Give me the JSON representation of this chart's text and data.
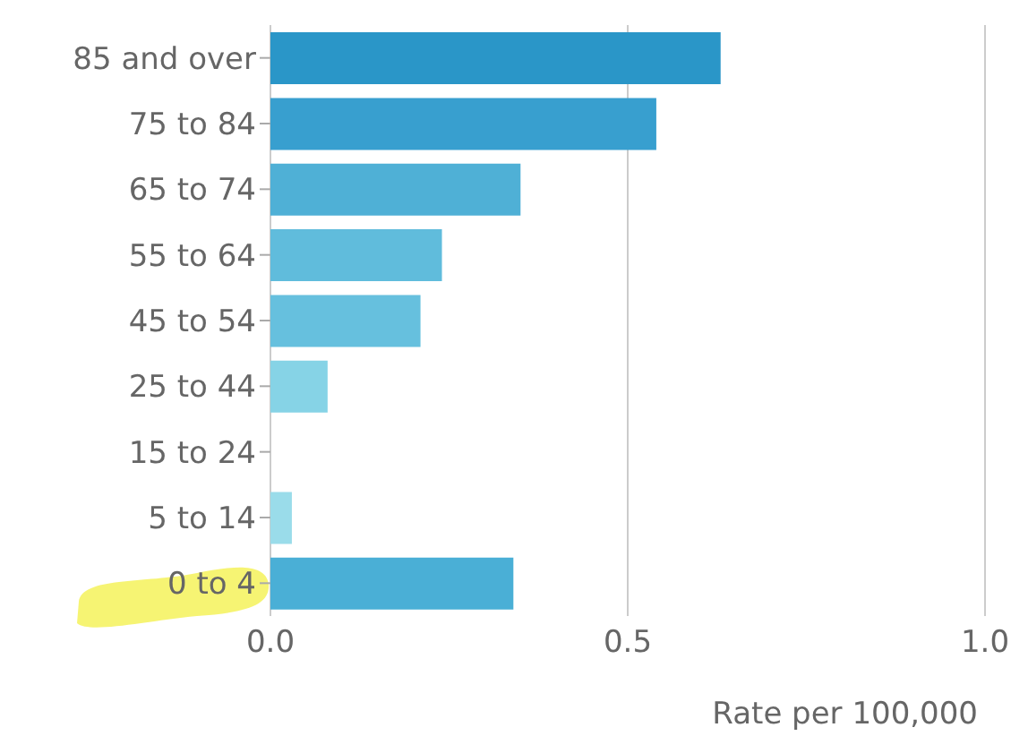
{
  "chart_data": {
    "type": "bar",
    "orientation": "horizontal",
    "xlabel": "Rate per 100,000",
    "categories": [
      "85 and over",
      "75 to 84",
      "65 to 74",
      "55 to 64",
      "45 to 54",
      "25 to 44",
      "15 to 24",
      "5 to 14",
      "0 to 4"
    ],
    "values": [
      0.63,
      0.54,
      0.35,
      0.24,
      0.21,
      0.08,
      0,
      0.03,
      0.34
    ],
    "colors": [
      "#2a96c8",
      "#389fcf",
      "#4fb0d6",
      "#60bcdc",
      "#66c0de",
      "#86d3e6",
      "#9adcea",
      "#9adcea",
      "#4aafd6"
    ],
    "xlim": [
      0,
      1
    ],
    "xticks": [
      {
        "value": 0,
        "label": "0.0"
      },
      {
        "value": 0.5,
        "label": "0.5"
      },
      {
        "value": 1,
        "label": "1.0"
      }
    ],
    "grid": "x"
  }
}
